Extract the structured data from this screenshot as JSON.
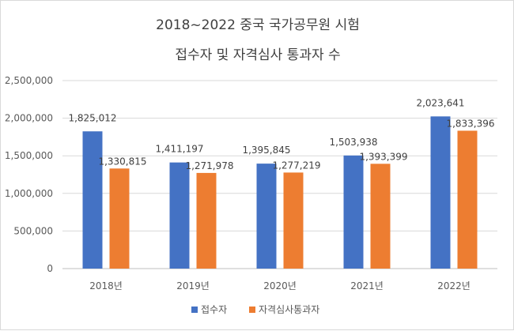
{
  "chart_data": {
    "type": "bar",
    "title_lines": [
      "2018~2022 중국 국가공무원 시험",
      "접수자 및 자격심사 통과자 수"
    ],
    "categories": [
      "2018년",
      "2019년",
      "2020년",
      "2021년",
      "2022년"
    ],
    "series": [
      {
        "name": "접수자",
        "color": "#4472C4",
        "values": [
          1825012,
          1411197,
          1395845,
          1503938,
          2023641
        ],
        "labels": [
          "1,825,012",
          "1,411,197",
          "1,395,845",
          "1,503,938",
          "2,023,641"
        ]
      },
      {
        "name": "자격심사통과자",
        "color": "#ED7D31",
        "values": [
          1330815,
          1271978,
          1277219,
          1393399,
          1833396
        ],
        "labels": [
          "1,330,815",
          "1,271,978",
          "1,277,219",
          "1,393,399",
          "1,833,396"
        ]
      }
    ],
    "ylim": [
      0,
      2500000
    ],
    "yticks": [
      0,
      500000,
      1000000,
      1500000,
      2000000,
      2500000
    ],
    "ytick_labels": [
      "0",
      "500,000",
      "1,000,000",
      "1,500,000",
      "2,000,000",
      "2,500,000"
    ],
    "grid": true,
    "legend_position": "bottom"
  }
}
